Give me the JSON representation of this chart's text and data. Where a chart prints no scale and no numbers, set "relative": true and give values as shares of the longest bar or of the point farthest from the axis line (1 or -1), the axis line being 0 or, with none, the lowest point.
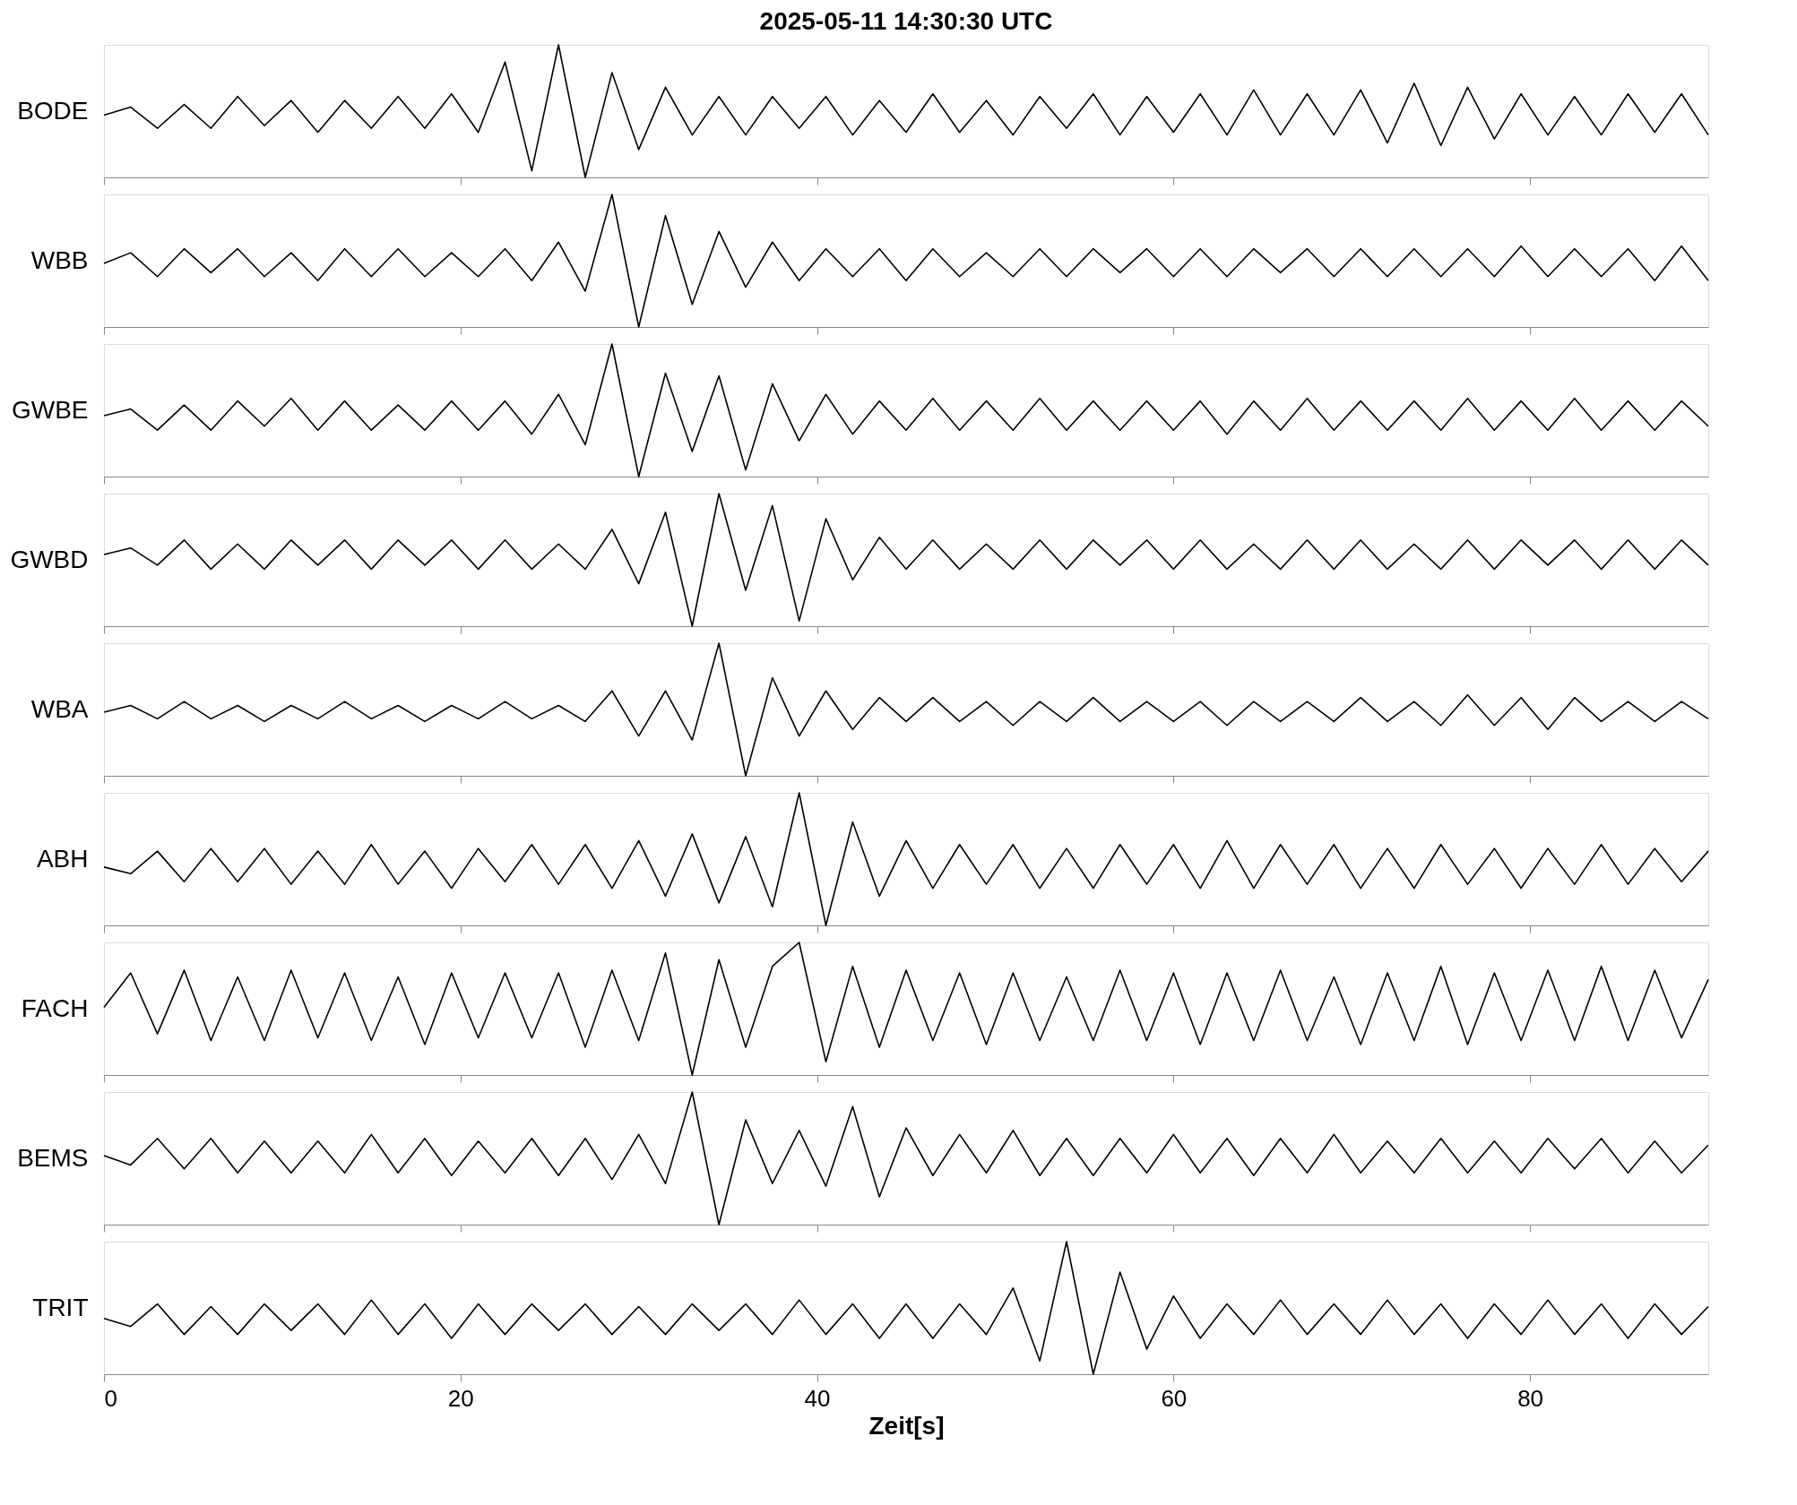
{
  "chart_data": [
    {
      "type": "line",
      "title": "2025-05-11  14:30:30 UTC",
      "ylabel": "BODE",
      "relative": true,
      "xlim": [
        0,
        90
      ],
      "xticks": [
        0,
        20,
        40,
        60,
        80
      ],
      "tick_labels": false,
      "grid": false,
      "x": [
        0,
        1.5,
        3,
        4.5,
        6,
        7.5,
        9,
        10.5,
        12,
        13.5,
        15,
        16.5,
        18,
        19.5,
        21,
        22.5,
        24,
        25.5,
        27,
        28.5,
        30,
        31.5,
        33,
        34.5,
        36,
        37.5,
        39,
        40.5,
        42,
        43.5,
        45,
        46.5,
        48,
        49.5,
        51,
        52.5,
        54,
        55.5,
        57,
        58.5,
        60,
        61.5,
        63,
        64.5,
        66,
        67.5,
        69,
        70.5,
        72,
        73.5,
        75,
        76.5,
        78,
        79.5,
        81,
        82.5,
        84,
        85.5,
        87,
        88.5,
        90
      ],
      "series": [
        {
          "color": "#000000",
          "values": [
            0.47,
            0.53,
            0.37,
            0.55,
            0.37,
            0.61,
            0.39,
            0.58,
            0.34,
            0.58,
            0.37,
            0.61,
            0.37,
            0.63,
            0.34,
            0.87,
            0.05,
            1,
            0,
            0.79,
            0.21,
            0.68,
            0.32,
            0.61,
            0.32,
            0.61,
            0.37,
            0.61,
            0.32,
            0.58,
            0.34,
            0.63,
            0.34,
            0.58,
            0.32,
            0.61,
            0.37,
            0.63,
            0.32,
            0.61,
            0.34,
            0.63,
            0.32,
            0.66,
            0.32,
            0.63,
            0.32,
            0.66,
            0.26,
            0.71,
            0.24,
            0.68,
            0.29,
            0.63,
            0.32,
            0.61,
            0.32,
            0.63,
            0.34,
            0.63,
            0.32
          ]
        }
      ]
    },
    {
      "type": "line",
      "ylabel": "WBB",
      "relative": true,
      "xlim": [
        0,
        90
      ],
      "xticks": [
        0,
        20,
        40,
        60,
        80
      ],
      "tick_labels": false,
      "grid": false,
      "x": [
        0,
        1.5,
        3,
        4.5,
        6,
        7.5,
        9,
        10.5,
        12,
        13.5,
        15,
        16.5,
        18,
        19.5,
        21,
        22.5,
        24,
        25.5,
        27,
        28.5,
        30,
        31.5,
        33,
        34.5,
        36,
        37.5,
        39,
        40.5,
        42,
        43.5,
        45,
        46.5,
        48,
        49.5,
        51,
        52.5,
        54,
        55.5,
        57,
        58.5,
        60,
        61.5,
        63,
        64.5,
        66,
        67.5,
        69,
        70.5,
        72,
        73.5,
        75,
        76.5,
        78,
        79.5,
        81,
        82.5,
        84,
        85.5,
        87,
        88.5,
        90
      ],
      "series": [
        {
          "color": "#000000",
          "values": [
            0.48,
            0.56,
            0.38,
            0.59,
            0.41,
            0.59,
            0.38,
            0.56,
            0.35,
            0.59,
            0.38,
            0.59,
            0.38,
            0.56,
            0.38,
            0.59,
            0.35,
            0.64,
            0.27,
            1,
            0,
            0.84,
            0.17,
            0.72,
            0.3,
            0.64,
            0.35,
            0.59,
            0.38,
            0.59,
            0.35,
            0.59,
            0.38,
            0.56,
            0.38,
            0.59,
            0.38,
            0.59,
            0.41,
            0.59,
            0.38,
            0.59,
            0.38,
            0.59,
            0.41,
            0.59,
            0.38,
            0.59,
            0.38,
            0.59,
            0.38,
            0.59,
            0.38,
            0.61,
            0.38,
            0.59,
            0.38,
            0.59,
            0.35,
            0.61,
            0.35
          ]
        }
      ]
    },
    {
      "type": "line",
      "ylabel": "GWBE",
      "relative": true,
      "xlim": [
        0,
        90
      ],
      "xticks": [
        0,
        20,
        40,
        60,
        80
      ],
      "tick_labels": false,
      "grid": false,
      "x": [
        0,
        1.5,
        3,
        4.5,
        6,
        7.5,
        9,
        10.5,
        12,
        13.5,
        15,
        16.5,
        18,
        19.5,
        21,
        22.5,
        24,
        25.5,
        27,
        28.5,
        30,
        31.5,
        33,
        34.5,
        36,
        37.5,
        39,
        40.5,
        42,
        43.5,
        45,
        46.5,
        48,
        49.5,
        51,
        52.5,
        54,
        55.5,
        57,
        58.5,
        60,
        61.5,
        63,
        64.5,
        66,
        67.5,
        69,
        70.5,
        72,
        73.5,
        75,
        76.5,
        78,
        79.5,
        81,
        82.5,
        84,
        85.5,
        87,
        88.5,
        90
      ],
      "series": [
        {
          "color": "#000000",
          "values": [
            0.46,
            0.51,
            0.35,
            0.54,
            0.35,
            0.57,
            0.38,
            0.59,
            0.35,
            0.57,
            0.35,
            0.54,
            0.35,
            0.57,
            0.35,
            0.57,
            0.32,
            0.62,
            0.24,
            1,
            0,
            0.78,
            0.19,
            0.76,
            0.05,
            0.7,
            0.27,
            0.62,
            0.32,
            0.57,
            0.35,
            0.59,
            0.35,
            0.57,
            0.35,
            0.59,
            0.35,
            0.57,
            0.35,
            0.57,
            0.35,
            0.57,
            0.32,
            0.57,
            0.35,
            0.59,
            0.35,
            0.57,
            0.35,
            0.57,
            0.35,
            0.59,
            0.35,
            0.57,
            0.35,
            0.59,
            0.35,
            0.57,
            0.35,
            0.57,
            0.38
          ]
        }
      ]
    },
    {
      "type": "line",
      "ylabel": "GWBD",
      "relative": true,
      "xlim": [
        0,
        90
      ],
      "xticks": [
        0,
        20,
        40,
        60,
        80
      ],
      "tick_labels": false,
      "grid": false,
      "x": [
        0,
        1.5,
        3,
        4.5,
        6,
        7.5,
        9,
        10.5,
        12,
        13.5,
        15,
        16.5,
        18,
        19.5,
        21,
        22.5,
        24,
        25.5,
        27,
        28.5,
        30,
        31.5,
        33,
        34.5,
        36,
        37.5,
        39,
        40.5,
        42,
        43.5,
        45,
        46.5,
        48,
        49.5,
        51,
        52.5,
        54,
        55.5,
        57,
        58.5,
        60,
        61.5,
        63,
        64.5,
        66,
        67.5,
        69,
        70.5,
        72,
        73.5,
        75,
        76.5,
        78,
        79.5,
        81,
        82.5,
        84,
        85.5,
        87,
        88.5,
        90
      ],
      "series": [
        {
          "color": "#000000",
          "values": [
            0.54,
            0.59,
            0.46,
            0.65,
            0.43,
            0.62,
            0.43,
            0.65,
            0.46,
            0.65,
            0.43,
            0.65,
            0.46,
            0.65,
            0.43,
            0.65,
            0.43,
            0.62,
            0.43,
            0.73,
            0.32,
            0.86,
            0,
            1,
            0.27,
            0.91,
            0.04,
            0.81,
            0.35,
            0.67,
            0.43,
            0.65,
            0.43,
            0.62,
            0.43,
            0.65,
            0.43,
            0.65,
            0.46,
            0.65,
            0.43,
            0.65,
            0.43,
            0.62,
            0.43,
            0.65,
            0.43,
            0.65,
            0.43,
            0.62,
            0.43,
            0.65,
            0.43,
            0.65,
            0.46,
            0.65,
            0.43,
            0.65,
            0.43,
            0.65,
            0.46
          ]
        }
      ]
    },
    {
      "type": "line",
      "ylabel": "WBA",
      "relative": true,
      "xlim": [
        0,
        90
      ],
      "xticks": [
        0,
        20,
        40,
        60,
        80
      ],
      "tick_labels": false,
      "grid": false,
      "x": [
        0,
        1.5,
        3,
        4.5,
        6,
        7.5,
        9,
        10.5,
        12,
        13.5,
        15,
        16.5,
        18,
        19.5,
        21,
        22.5,
        24,
        25.5,
        27,
        28.5,
        30,
        31.5,
        33,
        34.5,
        36,
        37.5,
        39,
        40.5,
        42,
        43.5,
        45,
        46.5,
        48,
        49.5,
        51,
        52.5,
        54,
        55.5,
        57,
        58.5,
        60,
        61.5,
        63,
        64.5,
        66,
        67.5,
        69,
        70.5,
        72,
        73.5,
        75,
        76.5,
        78,
        79.5,
        81,
        82.5,
        84,
        85.5,
        87,
        88.5,
        90
      ],
      "series": [
        {
          "color": "#000000",
          "values": [
            0.48,
            0.53,
            0.43,
            0.56,
            0.43,
            0.53,
            0.41,
            0.53,
            0.43,
            0.56,
            0.43,
            0.53,
            0.41,
            0.53,
            0.43,
            0.56,
            0.43,
            0.53,
            0.41,
            0.64,
            0.3,
            0.64,
            0.27,
            1,
            0,
            0.74,
            0.3,
            0.64,
            0.35,
            0.59,
            0.41,
            0.59,
            0.41,
            0.56,
            0.38,
            0.56,
            0.41,
            0.59,
            0.41,
            0.56,
            0.41,
            0.56,
            0.38,
            0.56,
            0.41,
            0.56,
            0.41,
            0.59,
            0.41,
            0.56,
            0.38,
            0.61,
            0.38,
            0.59,
            0.35,
            0.59,
            0.41,
            0.56,
            0.41,
            0.56,
            0.43
          ]
        }
      ]
    },
    {
      "type": "line",
      "ylabel": "ABH",
      "relative": true,
      "xlim": [
        0,
        90
      ],
      "xticks": [
        0,
        20,
        40,
        60,
        80
      ],
      "tick_labels": false,
      "grid": false,
      "x": [
        0,
        1.5,
        3,
        4.5,
        6,
        7.5,
        9,
        10.5,
        12,
        13.5,
        15,
        16.5,
        18,
        19.5,
        21,
        22.5,
        24,
        25.5,
        27,
        28.5,
        30,
        31.5,
        33,
        34.5,
        36,
        37.5,
        39,
        40.5,
        42,
        43.5,
        45,
        46.5,
        48,
        49.5,
        51,
        52.5,
        54,
        55.5,
        57,
        58.5,
        60,
        61.5,
        63,
        64.5,
        66,
        67.5,
        69,
        70.5,
        72,
        73.5,
        75,
        76.5,
        78,
        79.5,
        81,
        82.5,
        84,
        85.5,
        87,
        88.5,
        90
      ],
      "series": [
        {
          "color": "#000000",
          "values": [
            0.44,
            0.39,
            0.56,
            0.33,
            0.58,
            0.33,
            0.58,
            0.31,
            0.56,
            0.31,
            0.61,
            0.31,
            0.56,
            0.28,
            0.58,
            0.33,
            0.61,
            0.31,
            0.61,
            0.28,
            0.64,
            0.22,
            0.69,
            0.17,
            0.67,
            0.14,
            1,
            0,
            0.78,
            0.22,
            0.64,
            0.28,
            0.61,
            0.31,
            0.61,
            0.28,
            0.58,
            0.28,
            0.61,
            0.31,
            0.61,
            0.28,
            0.64,
            0.28,
            0.61,
            0.31,
            0.61,
            0.28,
            0.58,
            0.28,
            0.61,
            0.31,
            0.58,
            0.28,
            0.58,
            0.31,
            0.61,
            0.31,
            0.58,
            0.33,
            0.56
          ]
        }
      ]
    },
    {
      "type": "line",
      "ylabel": "FACH",
      "relative": true,
      "xlim": [
        0,
        90
      ],
      "xticks": [
        0,
        20,
        40,
        60,
        80
      ],
      "tick_labels": false,
      "grid": false,
      "x": [
        0,
        1.5,
        3,
        4.5,
        6,
        7.5,
        9,
        10.5,
        12,
        13.5,
        15,
        16.5,
        18,
        19.5,
        21,
        22.5,
        24,
        25.5,
        27,
        28.5,
        30,
        31.5,
        33,
        34.5,
        36,
        37.5,
        39,
        40.5,
        42,
        43.5,
        45,
        46.5,
        48,
        49.5,
        51,
        52.5,
        54,
        55.5,
        57,
        58.5,
        60,
        61.5,
        63,
        64.5,
        66,
        67.5,
        69,
        70.5,
        72,
        73.5,
        75,
        76.5,
        78,
        79.5,
        81,
        82.5,
        84,
        85.5,
        87,
        88.5,
        90
      ],
      "series": [
        {
          "color": "#000000",
          "values": [
            0.51,
            0.77,
            0.31,
            0.79,
            0.26,
            0.74,
            0.26,
            0.79,
            0.28,
            0.77,
            0.26,
            0.74,
            0.23,
            0.77,
            0.28,
            0.77,
            0.28,
            0.77,
            0.21,
            0.79,
            0.26,
            0.92,
            0,
            0.87,
            0.21,
            0.82,
            1,
            0.1,
            0.82,
            0.21,
            0.79,
            0.26,
            0.77,
            0.23,
            0.77,
            0.26,
            0.74,
            0.26,
            0.79,
            0.26,
            0.77,
            0.23,
            0.77,
            0.26,
            0.79,
            0.26,
            0.74,
            0.23,
            0.77,
            0.26,
            0.82,
            0.23,
            0.77,
            0.26,
            0.79,
            0.26,
            0.82,
            0.26,
            0.79,
            0.28,
            0.72
          ]
        }
      ]
    },
    {
      "type": "line",
      "ylabel": "BEMS",
      "relative": true,
      "xlim": [
        0,
        90
      ],
      "xticks": [
        0,
        20,
        40,
        60,
        80
      ],
      "tick_labels": false,
      "grid": false,
      "x": [
        0,
        1.5,
        3,
        4.5,
        6,
        7.5,
        9,
        10.5,
        12,
        13.5,
        15,
        16.5,
        18,
        19.5,
        21,
        22.5,
        24,
        25.5,
        27,
        28.5,
        30,
        31.5,
        33,
        34.5,
        36,
        37.5,
        39,
        40.5,
        42,
        43.5,
        45,
        46.5,
        48,
        49.5,
        51,
        52.5,
        54,
        55.5,
        57,
        58.5,
        60,
        61.5,
        63,
        64.5,
        66,
        67.5,
        69,
        70.5,
        72,
        73.5,
        75,
        76.5,
        78,
        79.5,
        81,
        82.5,
        84,
        85.5,
        87,
        88.5,
        90
      ],
      "series": [
        {
          "color": "#000000",
          "values": [
            0.52,
            0.45,
            0.65,
            0.42,
            0.65,
            0.39,
            0.63,
            0.39,
            0.63,
            0.39,
            0.68,
            0.39,
            0.65,
            0.37,
            0.63,
            0.39,
            0.65,
            0.37,
            0.65,
            0.34,
            0.68,
            0.31,
            1,
            0,
            0.79,
            0.31,
            0.71,
            0.29,
            0.89,
            0.21,
            0.73,
            0.37,
            0.68,
            0.39,
            0.71,
            0.37,
            0.65,
            0.37,
            0.65,
            0.39,
            0.68,
            0.39,
            0.65,
            0.37,
            0.65,
            0.39,
            0.68,
            0.39,
            0.63,
            0.39,
            0.65,
            0.39,
            0.63,
            0.39,
            0.65,
            0.42,
            0.65,
            0.39,
            0.63,
            0.39,
            0.6
          ]
        }
      ]
    },
    {
      "type": "line",
      "ylabel": "TRIT",
      "xlabel": "Zeit[s]",
      "relative": true,
      "xlim": [
        0,
        90
      ],
      "xticks": [
        0,
        20,
        40,
        60,
        80
      ],
      "tick_labels": "x",
      "grid": false,
      "x": [
        0,
        1.5,
        3,
        4.5,
        6,
        7.5,
        9,
        10.5,
        12,
        13.5,
        15,
        16.5,
        18,
        19.5,
        21,
        22.5,
        24,
        25.5,
        27,
        28.5,
        30,
        31.5,
        33,
        34.5,
        36,
        37.5,
        39,
        40.5,
        42,
        43.5,
        45,
        46.5,
        48,
        49.5,
        51,
        52.5,
        54,
        55.5,
        57,
        58.5,
        60,
        61.5,
        63,
        64.5,
        66,
        67.5,
        69,
        70.5,
        72,
        73.5,
        75,
        76.5,
        78,
        79.5,
        81,
        82.5,
        84,
        85.5,
        87,
        88.5,
        90
      ],
      "series": [
        {
          "color": "#000000",
          "values": [
            0.42,
            0.36,
            0.53,
            0.3,
            0.51,
            0.3,
            0.53,
            0.33,
            0.53,
            0.3,
            0.56,
            0.3,
            0.53,
            0.27,
            0.53,
            0.3,
            0.53,
            0.33,
            0.53,
            0.3,
            0.51,
            0.3,
            0.53,
            0.33,
            0.53,
            0.3,
            0.56,
            0.3,
            0.53,
            0.27,
            0.53,
            0.27,
            0.53,
            0.3,
            0.65,
            0.1,
            1,
            0,
            0.77,
            0.19,
            0.59,
            0.27,
            0.53,
            0.3,
            0.56,
            0.3,
            0.53,
            0.3,
            0.56,
            0.3,
            0.53,
            0.27,
            0.53,
            0.3,
            0.56,
            0.3,
            0.53,
            0.27,
            0.53,
            0.3,
            0.51
          ]
        }
      ]
    }
  ]
}
